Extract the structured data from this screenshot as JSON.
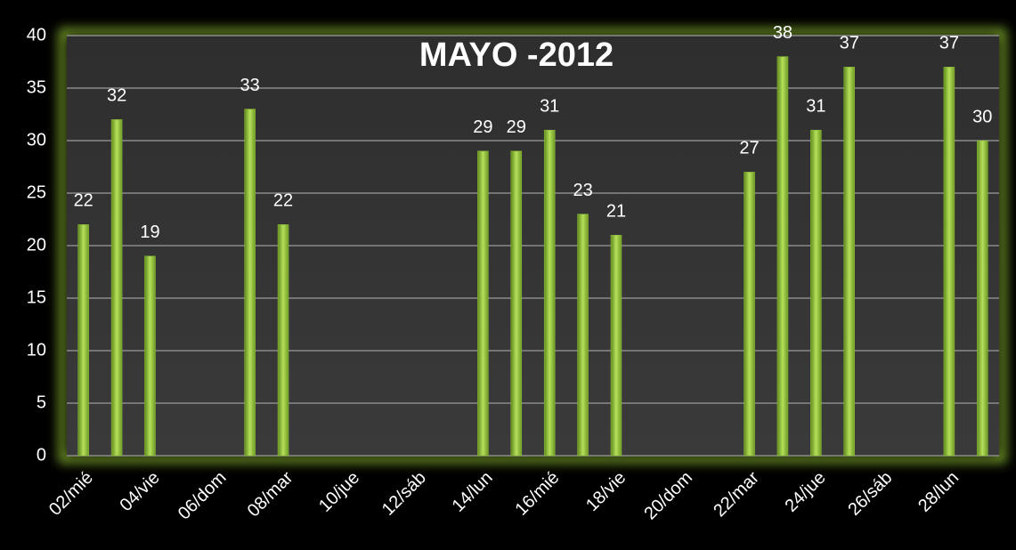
{
  "chart_data": {
    "type": "bar",
    "title": "MAYO -2012",
    "categories": [
      "02/mié",
      null,
      "04/vie",
      null,
      "06/dom",
      null,
      "08/mar",
      null,
      "10/jue",
      null,
      "12/sáb",
      null,
      "14/lun",
      null,
      "16/mié",
      null,
      "18/vie",
      null,
      "20/dom",
      null,
      "22/mar",
      null,
      "24/jue",
      null,
      "26/sáb",
      null,
      "28/lun",
      null
    ],
    "values": [
      22,
      32,
      19,
      null,
      null,
      33,
      22,
      null,
      null,
      null,
      null,
      null,
      29,
      29,
      31,
      23,
      21,
      null,
      null,
      null,
      27,
      38,
      31,
      37,
      null,
      null,
      37,
      30
    ],
    "color": "#8fc23a",
    "ylim": [
      0,
      40
    ],
    "yticks": [
      0,
      5,
      10,
      15,
      20,
      25,
      30,
      35,
      40
    ],
    "grid": true
  }
}
